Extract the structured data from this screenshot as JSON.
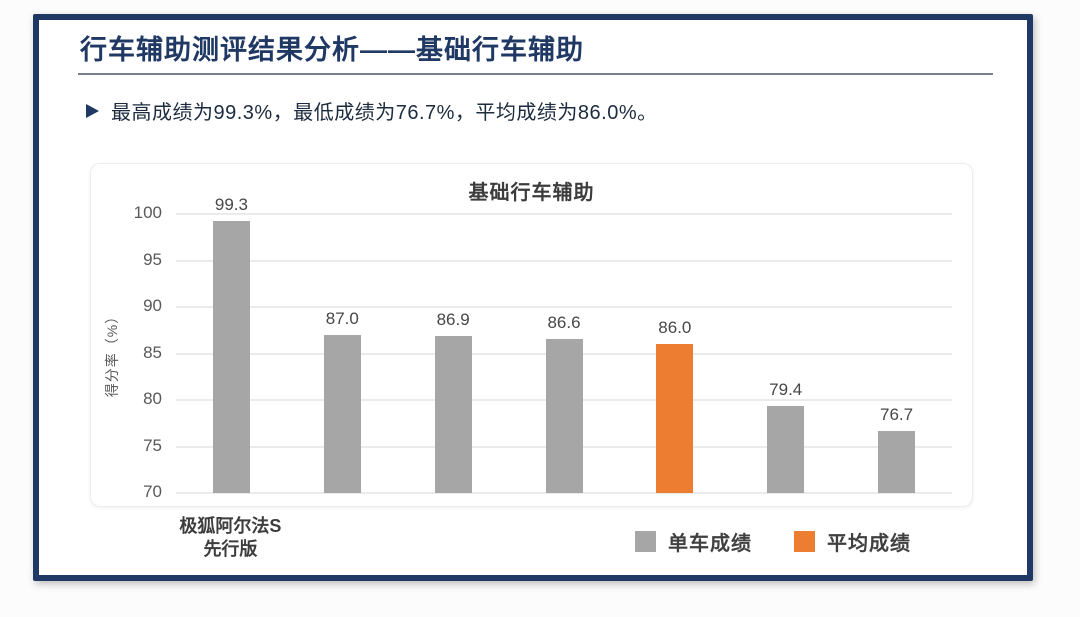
{
  "slide": {
    "title": "行车辅助测评结果分析——基础行车辅助",
    "bullet_icon": "arrow-right",
    "bullet_text": "最高成绩为99.3%，最低成绩为76.7%，平均成绩为86.0%。",
    "border_color": "#1f3864"
  },
  "chart_data": {
    "type": "bar",
    "title": "基础行车辅助",
    "ylabel": "得分率（%）",
    "ylim": [
      70,
      100
    ],
    "yticks": [
      70,
      75,
      80,
      85,
      90,
      95,
      100
    ],
    "grid": true,
    "legend_position": "bottom",
    "bars": [
      {
        "category": "极狐阿尔法S先行版",
        "category_lines": [
          "极狐阿尔法S",
          "先行版"
        ],
        "value": 99.3,
        "series": "单车成绩"
      },
      {
        "category": "",
        "value": 87.0,
        "series": "单车成绩"
      },
      {
        "category": "",
        "value": 86.9,
        "series": "单车成绩"
      },
      {
        "category": "",
        "value": 86.6,
        "series": "单车成绩"
      },
      {
        "category": "",
        "value": 86.0,
        "series": "平均成绩"
      },
      {
        "category": "",
        "value": 79.4,
        "series": "单车成绩"
      },
      {
        "category": "",
        "value": 76.7,
        "series": "单车成绩"
      }
    ],
    "series_colors": {
      "单车成绩": "#a6a6a6",
      "平均成绩": "#ed7d31"
    },
    "legend": [
      {
        "name": "单车成绩",
        "color": "#a6a6a6"
      },
      {
        "name": "平均成绩",
        "color": "#ed7d31"
      }
    ]
  }
}
